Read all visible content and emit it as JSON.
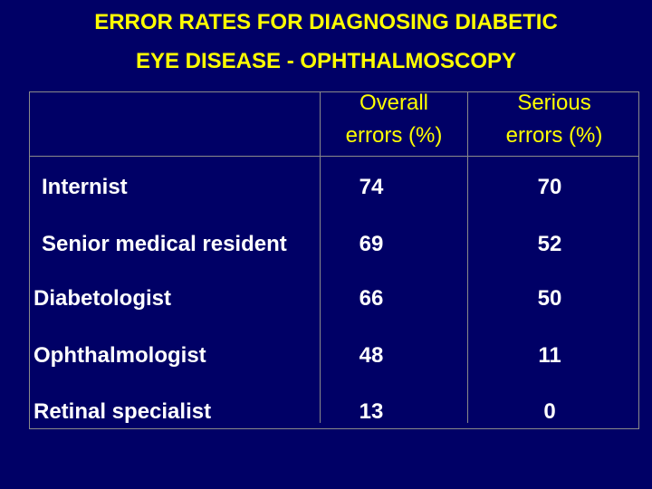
{
  "title": {
    "line1": "ERROR RATES FOR DIAGNOSING DIABETIC",
    "line2": "EYE DISEASE - OPHTHALMOSCOPY"
  },
  "table": {
    "headers": {
      "overall_line1": "Overall",
      "overall_line2": "errors (%)",
      "serious_line1": "Serious",
      "serious_line2": "errors (%)"
    },
    "rows": [
      {
        "label": "Internist",
        "overall": "74",
        "serious": "70"
      },
      {
        "label": "Senior medical resident",
        "overall": "69",
        "serious": "52"
      },
      {
        "label": "Diabetologist",
        "overall": "66",
        "serious": "50"
      },
      {
        "label": "Ophthalmologist",
        "overall": "48",
        "serious": "11"
      },
      {
        "label": "Retinal specialist",
        "overall": "13",
        "serious": "0"
      }
    ]
  },
  "colors": {
    "background": "#000066",
    "title_text": "#FFFF00",
    "header_text": "#FFFF00",
    "body_text": "#FFFFFF"
  }
}
